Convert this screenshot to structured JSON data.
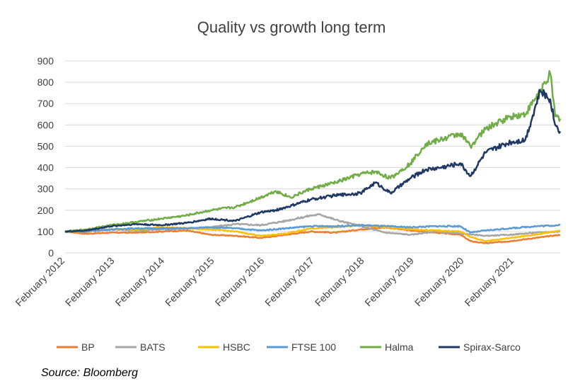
{
  "chart_data": {
    "type": "line",
    "title": "Quality vs growth long term",
    "xlabel": "",
    "ylabel": "",
    "ylim": [
      0,
      900
    ],
    "yticks": [
      0,
      100,
      200,
      300,
      400,
      500,
      600,
      700,
      800,
      900
    ],
    "xlim": [
      2012.08,
      2022.0
    ],
    "xticks": [
      {
        "x": 2012.08,
        "label": "February 2012"
      },
      {
        "x": 2013.08,
        "label": "February 2013"
      },
      {
        "x": 2014.08,
        "label": "February 2014"
      },
      {
        "x": 2015.08,
        "label": "February 2015"
      },
      {
        "x": 2016.08,
        "label": "February 2016"
      },
      {
        "x": 2017.08,
        "label": "February 2017"
      },
      {
        "x": 2018.08,
        "label": "February 2018"
      },
      {
        "x": 2019.08,
        "label": "February 2019"
      },
      {
        "x": 2020.08,
        "label": "February 2020"
      },
      {
        "x": 2021.08,
        "label": "February 2021"
      }
    ],
    "grid": "horizontal",
    "legend_position": "bottom",
    "series": [
      {
        "name": "BP",
        "color": "#ED7D31",
        "x": [
          2012.08,
          2012.5,
          2013.0,
          2013.5,
          2014.0,
          2014.5,
          2015.0,
          2015.5,
          2016.0,
          2016.5,
          2017.0,
          2017.5,
          2018.0,
          2018.5,
          2019.0,
          2019.5,
          2020.0,
          2020.2,
          2020.5,
          2021.0,
          2021.5,
          2022.0
        ],
        "y": [
          100,
          90,
          95,
          95,
          100,
          105,
          85,
          80,
          70,
          85,
          100,
          95,
          110,
          120,
          105,
          95,
          85,
          55,
          45,
          55,
          70,
          85
        ]
      },
      {
        "name": "BATS",
        "color": "#A5A5A5",
        "x": [
          2012.08,
          2012.5,
          2013.0,
          2013.5,
          2014.0,
          2014.5,
          2015.0,
          2015.5,
          2016.0,
          2016.5,
          2017.0,
          2017.2,
          2017.5,
          2018.0,
          2018.5,
          2019.0,
          2019.5,
          2020.0,
          2020.5,
          2021.0,
          2021.5,
          2022.0
        ],
        "y": [
          100,
          105,
          110,
          105,
          110,
          115,
          120,
          135,
          130,
          150,
          175,
          180,
          155,
          125,
          95,
          85,
          100,
          90,
          80,
          85,
          95,
          100
        ]
      },
      {
        "name": "HSBC",
        "color": "#FFC000",
        "x": [
          2012.08,
          2012.5,
          2013.0,
          2013.5,
          2014.0,
          2014.5,
          2015.0,
          2015.5,
          2016.0,
          2016.5,
          2017.0,
          2017.5,
          2018.0,
          2018.5,
          2019.0,
          2019.5,
          2020.0,
          2020.2,
          2020.5,
          2021.0,
          2021.5,
          2022.0
        ],
        "y": [
          100,
          100,
          110,
          110,
          120,
          115,
          110,
          100,
          80,
          90,
          115,
          120,
          130,
          120,
          110,
          105,
          100,
          75,
          55,
          70,
          85,
          105
        ]
      },
      {
        "name": "FTSE 100",
        "color": "#5B9BD5",
        "x": [
          2012.08,
          2012.5,
          2013.0,
          2013.5,
          2014.0,
          2014.5,
          2015.0,
          2015.5,
          2016.0,
          2016.5,
          2017.0,
          2017.5,
          2018.0,
          2018.5,
          2019.0,
          2019.5,
          2020.0,
          2020.2,
          2020.5,
          2021.0,
          2021.5,
          2022.0
        ],
        "y": [
          100,
          100,
          110,
          115,
          115,
          115,
          120,
          115,
          105,
          115,
          125,
          125,
          130,
          125,
          120,
          125,
          125,
          95,
          105,
          115,
          125,
          130
        ]
      },
      {
        "name": "Halma",
        "color": "#70AD47",
        "x": [
          2012.08,
          2012.5,
          2013.0,
          2013.5,
          2014.0,
          2014.5,
          2015.0,
          2015.5,
          2016.0,
          2016.3,
          2016.6,
          2017.0,
          2017.5,
          2018.0,
          2018.3,
          2018.6,
          2019.0,
          2019.3,
          2019.6,
          2020.0,
          2020.2,
          2020.5,
          2021.0,
          2021.3,
          2021.6,
          2021.8,
          2021.9,
          2022.0
        ],
        "y": [
          100,
          110,
          130,
          145,
          160,
          175,
          200,
          215,
          260,
          290,
          260,
          300,
          330,
          370,
          380,
          350,
          420,
          510,
          530,
          560,
          500,
          580,
          640,
          650,
          760,
          840,
          640,
          630
        ]
      },
      {
        "name": "Spirax-Sarco",
        "color": "#203864",
        "x": [
          2012.08,
          2012.5,
          2013.0,
          2013.5,
          2014.0,
          2014.5,
          2015.0,
          2015.5,
          2016.0,
          2016.3,
          2016.6,
          2017.0,
          2017.5,
          2018.0,
          2018.3,
          2018.6,
          2019.0,
          2019.3,
          2019.6,
          2020.0,
          2020.2,
          2020.5,
          2021.0,
          2021.3,
          2021.6,
          2021.8,
          2021.9,
          2022.0
        ],
        "y": [
          100,
          105,
          125,
          135,
          130,
          140,
          160,
          150,
          190,
          200,
          220,
          250,
          270,
          280,
          330,
          280,
          350,
          390,
          400,
          420,
          360,
          470,
          520,
          530,
          760,
          720,
          600,
          570
        ]
      }
    ]
  },
  "source_text": "Source: Bloomberg"
}
